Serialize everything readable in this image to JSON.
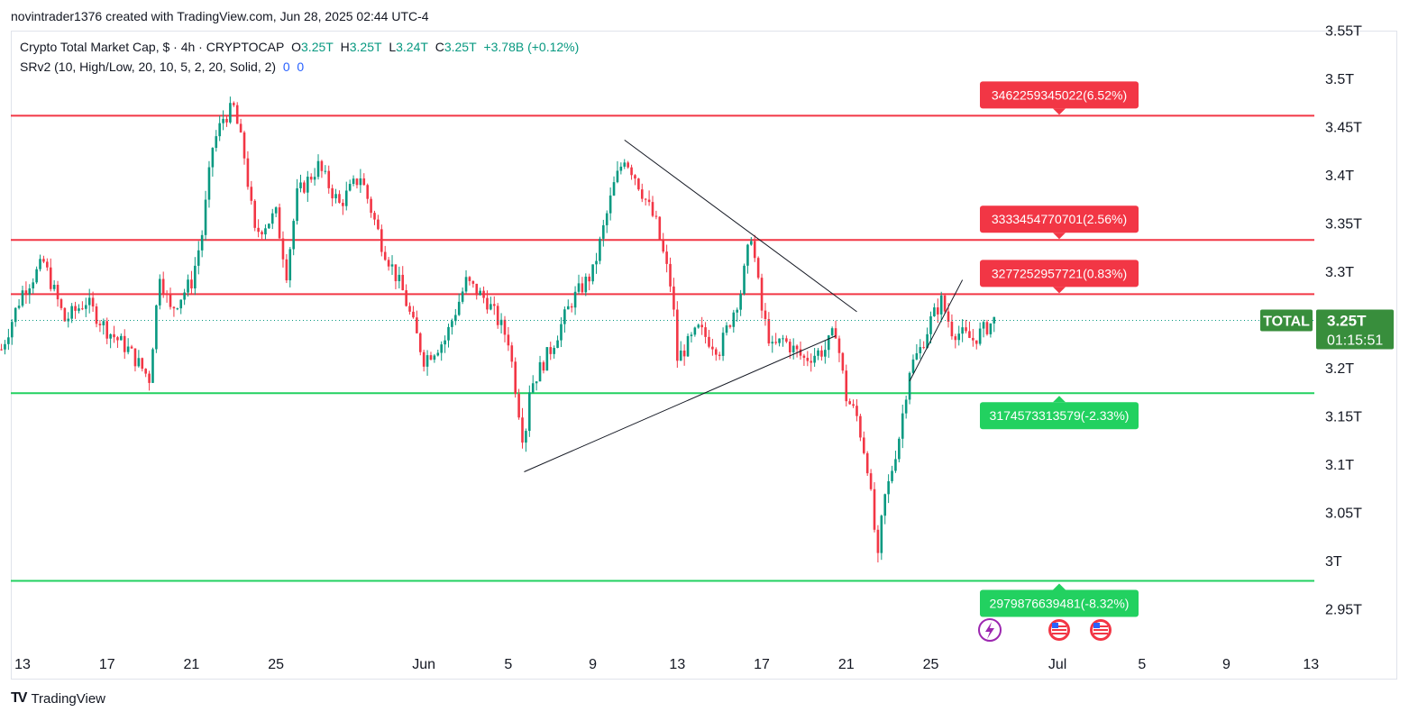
{
  "header": {
    "attribution": "novintrader1376 created with TradingView.com, Jun 28, 2025 02:44 UTC-4"
  },
  "legend": {
    "symbol": "Crypto Total Market Cap, $ · 4h · CRYPTOCAP",
    "o_label": "O",
    "o_value": "3.25T",
    "h_label": "H",
    "h_value": "3.25T",
    "l_label": "L",
    "l_value": "3.24T",
    "c_label": "C",
    "c_value": "3.25T",
    "change": "+3.78B (+0.12%)",
    "indicator": "SRv2 (10, High/Low, 20, 10, 5, 2, 20, Solid, 2)",
    "ind_val1": "0",
    "ind_val2": "0"
  },
  "footer": {
    "brand": "TradingView",
    "logo_text": "TV"
  },
  "colors": {
    "up": "#089981",
    "down": "#f23645",
    "resistance": "#f23645",
    "support": "#22d160",
    "price_tag": "#388e3c",
    "trend": "#131722"
  },
  "chart_data": {
    "type": "candlestick",
    "y_ticks": [
      "3.55T",
      "3.5T",
      "3.45T",
      "3.4T",
      "3.35T",
      "3.3T",
      "3.25T",
      "3.2T",
      "3.15T",
      "3.1T",
      "3.05T",
      "3T",
      "2.95T"
    ],
    "y_tick_values": [
      3.55,
      3.5,
      3.45,
      3.4,
      3.35,
      3.3,
      3.25,
      3.2,
      3.15,
      3.1,
      3.05,
      3.0,
      2.95
    ],
    "x_ticks": [
      "13",
      "17",
      "21",
      "25",
      "Jun",
      "5",
      "9",
      "13",
      "17",
      "21",
      "25",
      "Jul",
      "5",
      "9",
      "13"
    ],
    "x_tick_dates": [
      "2025-05-13",
      "2025-05-17",
      "2025-05-21",
      "2025-05-25",
      "2025-06-01",
      "2025-06-05",
      "2025-06-09",
      "2025-06-13",
      "2025-06-17",
      "2025-06-21",
      "2025-06-25",
      "2025-07-01",
      "2025-07-05",
      "2025-07-09",
      "2025-07-13"
    ],
    "levels": [
      {
        "label": "3462259345022(6.52%)",
        "value": 3462259345022,
        "kind": "resistance"
      },
      {
        "label": "3333454770701(2.56%)",
        "value": 3333454770701,
        "kind": "resistance"
      },
      {
        "label": "3277252957721(0.83%)",
        "value": 3277252957721,
        "kind": "resistance"
      },
      {
        "label": "3174573313579(-2.33%)",
        "value": 3174573313579,
        "kind": "support"
      },
      {
        "label": "2979876639481(-8.32%)",
        "value": 2979876639481,
        "kind": "support"
      }
    ],
    "current_price": {
      "symbol": "TOTAL",
      "value_label": "3.25T",
      "value": 3.25,
      "countdown": "01:15:51"
    },
    "trendlines": [
      {
        "from": [
          "2025-06-10 12:00",
          3.437
        ],
        "to": [
          "2025-06-21 12:00",
          3.259
        ]
      },
      {
        "from": [
          "2025-06-05 18:00",
          3.093
        ],
        "to": [
          "2025-06-20 12:00",
          3.234
        ]
      },
      {
        "from": [
          "2025-06-24 00:00",
          3.187
        ],
        "to": [
          "2025-06-26 12:00",
          3.292
        ]
      }
    ],
    "series_keypoints": [
      [
        "2025-05-12",
        3.22
      ],
      [
        "2025-05-13",
        3.28
      ],
      [
        "2025-05-14",
        3.31
      ],
      [
        "2025-05-15",
        3.25
      ],
      [
        "2025-05-16",
        3.27
      ],
      [
        "2025-05-17",
        3.24
      ],
      [
        "2025-05-18",
        3.22
      ],
      [
        "2025-05-19",
        3.19
      ],
      [
        "2025-05-19 12:00",
        3.3
      ],
      [
        "2025-05-20",
        3.26
      ],
      [
        "2025-05-21",
        3.29
      ],
      [
        "2025-05-21 12:00",
        3.34
      ],
      [
        "2025-05-22",
        3.43
      ],
      [
        "2025-05-22 12:00",
        3.46
      ],
      [
        "2025-05-23",
        3.47
      ],
      [
        "2025-05-23 12:00",
        3.42
      ],
      [
        "2025-05-24",
        3.34
      ],
      [
        "2025-05-25",
        3.36
      ],
      [
        "2025-05-25 12:00",
        3.3
      ],
      [
        "2025-05-26",
        3.38
      ],
      [
        "2025-05-27",
        3.41
      ],
      [
        "2025-05-28",
        3.37
      ],
      [
        "2025-05-29",
        3.4
      ],
      [
        "2025-05-30",
        3.33
      ],
      [
        "2025-05-31",
        3.28
      ],
      [
        "2025-06-01",
        3.21
      ],
      [
        "2025-06-02",
        3.23
      ],
      [
        "2025-06-03",
        3.29
      ],
      [
        "2025-06-04",
        3.27
      ],
      [
        "2025-06-05",
        3.23
      ],
      [
        "2025-06-05 18:00",
        3.12
      ],
      [
        "2025-06-06",
        3.18
      ],
      [
        "2025-06-07",
        3.22
      ],
      [
        "2025-06-08",
        3.27
      ],
      [
        "2025-06-09",
        3.3
      ],
      [
        "2025-06-10",
        3.39
      ],
      [
        "2025-06-10 12:00",
        3.42
      ],
      [
        "2025-06-11",
        3.4
      ],
      [
        "2025-06-12",
        3.35
      ],
      [
        "2025-06-12 18:00",
        3.28
      ],
      [
        "2025-06-13",
        3.21
      ],
      [
        "2025-06-14",
        3.24
      ],
      [
        "2025-06-15",
        3.22
      ],
      [
        "2025-06-16",
        3.28
      ],
      [
        "2025-06-16 12:00",
        3.34
      ],
      [
        "2025-06-17",
        3.26
      ],
      [
        "2025-06-17 12:00",
        3.22
      ],
      [
        "2025-06-18",
        3.23
      ],
      [
        "2025-06-19",
        3.21
      ],
      [
        "2025-06-20",
        3.22
      ],
      [
        "2025-06-20 12:00",
        3.24
      ],
      [
        "2025-06-21",
        3.17
      ],
      [
        "2025-06-21 12:00",
        3.15
      ],
      [
        "2025-06-22",
        3.1
      ],
      [
        "2025-06-22 12:00",
        3.0
      ],
      [
        "2025-06-22 18:00",
        3.06
      ],
      [
        "2025-06-23",
        3.08
      ],
      [
        "2025-06-23 12:00",
        3.13
      ],
      [
        "2025-06-24",
        3.2
      ],
      [
        "2025-06-24 12:00",
        3.22
      ],
      [
        "2025-06-25",
        3.25
      ],
      [
        "2025-06-25 12:00",
        3.27
      ],
      [
        "2025-06-26",
        3.24
      ],
      [
        "2025-06-27",
        3.23
      ],
      [
        "2025-06-28",
        3.25
      ]
    ]
  }
}
